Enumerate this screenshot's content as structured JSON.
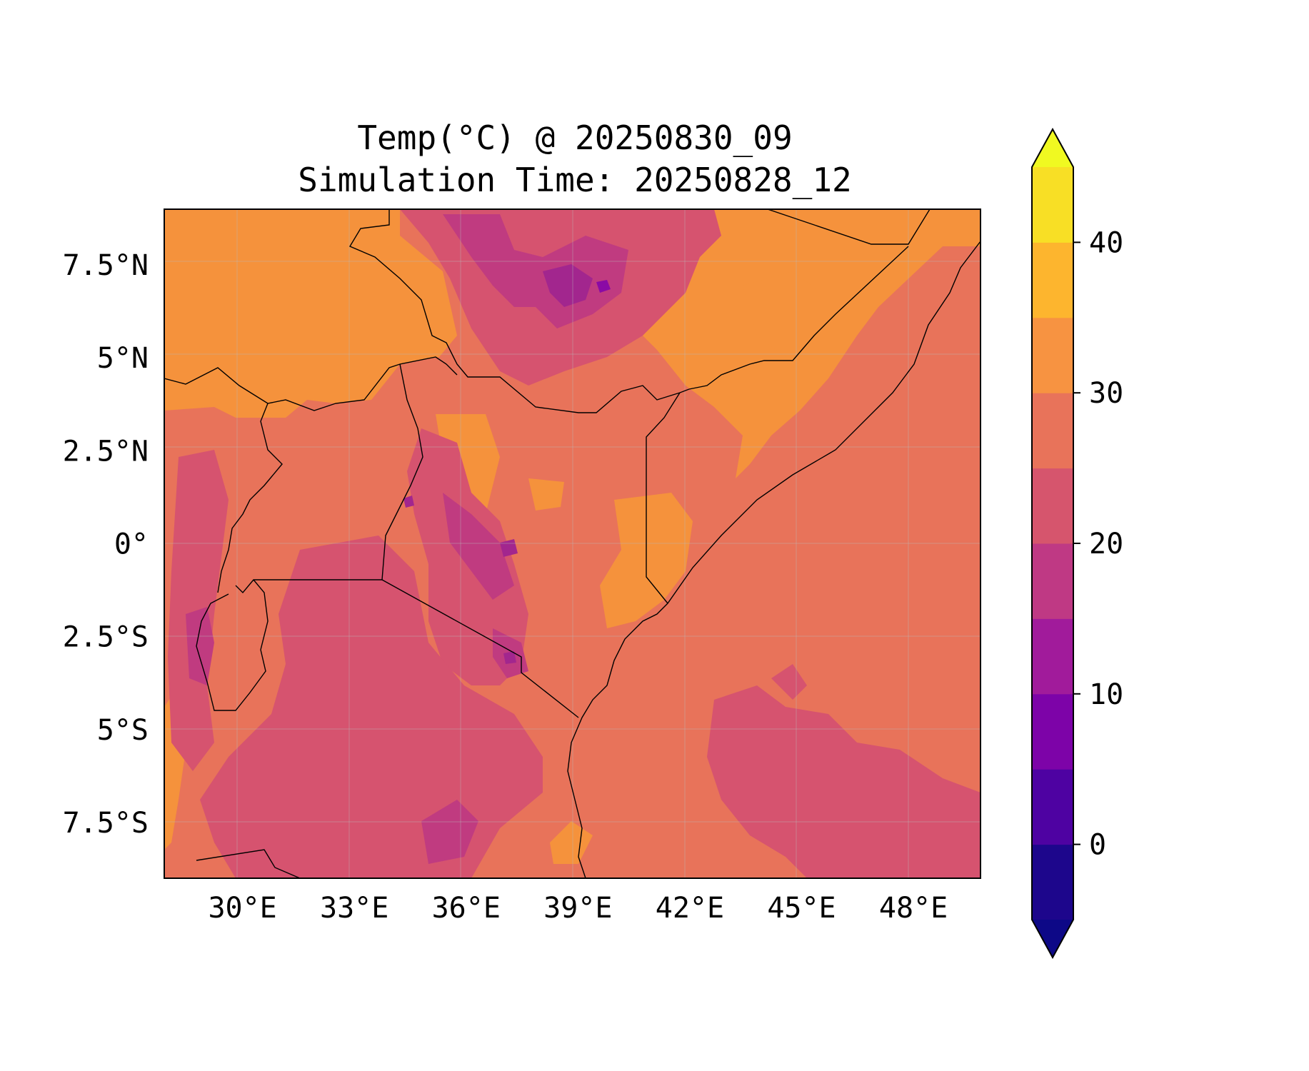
{
  "title": {
    "line1": "Temp(°C) @ 20250830_09",
    "line2": "Simulation Time: 20250828_12"
  },
  "map": {
    "variable": "Temp(°C)",
    "extent": {
      "lon": [
        27.9,
        49.8
      ],
      "lat": [
        -9.0,
        9.0
      ]
    },
    "x_ticks": [
      {
        "value": 30,
        "label": "30°E"
      },
      {
        "value": 33,
        "label": "33°E"
      },
      {
        "value": 36,
        "label": "36°E"
      },
      {
        "value": 39,
        "label": "39°E"
      },
      {
        "value": 42,
        "label": "42°E"
      },
      {
        "value": 45,
        "label": "45°E"
      },
      {
        "value": 48,
        "label": "48°E"
      }
    ],
    "y_ticks": [
      {
        "value": 7.5,
        "label": "7.5°N"
      },
      {
        "value": 5,
        "label": "5°N"
      },
      {
        "value": 2.5,
        "label": "2.5°N"
      },
      {
        "value": 0,
        "label": "0°"
      },
      {
        "value": -2.5,
        "label": "2.5°S"
      },
      {
        "value": -5,
        "label": "5°S"
      },
      {
        "value": -7.5,
        "label": "7.5°S"
      }
    ],
    "gridlines": true,
    "colormap": "plasma",
    "colors": {
      "band_35_40": "#fcb130",
      "band_30_35": "#f5923c",
      "band_25_30": "#e8735a",
      "band_20_25": "#d6536f",
      "band_15_20": "#c03b80",
      "band_10_15": "#a2268e",
      "band_5_10": "#8a0aa5",
      "band_0_5": "#5402a3",
      "band_-5_0": "#29068f"
    }
  },
  "colorbar": {
    "min": -5,
    "max": 45,
    "extend": "both",
    "levels": [
      -5,
      0,
      5,
      10,
      15,
      20,
      25,
      30,
      35,
      40,
      45
    ],
    "colors": [
      "#1d068c",
      "#4e02a2",
      "#7d03a8",
      "#a11b9b",
      "#bf3984",
      "#d6556d",
      "#e8735a",
      "#f79341",
      "#fdb52e",
      "#f8df25"
    ],
    "under_color": "#0d0887",
    "over_color": "#f0f921",
    "ticks": [
      {
        "value": 0,
        "label": "0"
      },
      {
        "value": 10,
        "label": "10"
      },
      {
        "value": 20,
        "label": "20"
      },
      {
        "value": 30,
        "label": "30"
      },
      {
        "value": 40,
        "label": "40"
      }
    ]
  }
}
